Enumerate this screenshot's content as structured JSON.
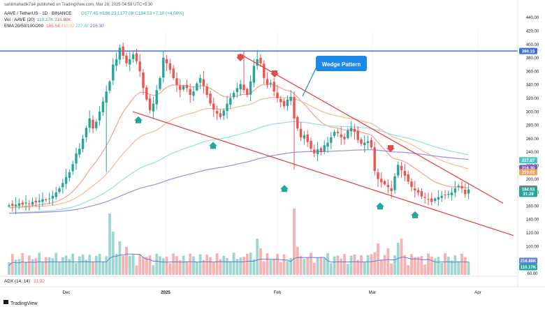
{
  "header": {
    "publisher": "sahilmahadik7a4 published on TradingView.com, Mar 28, 2025 04:58 UTC+5:30",
    "symbol": "AAVE / TetherUS · 1D · BINANCE",
    "ohlc": "O177.45 H186.23 L177.08 C184.53 +7.10 (+4.00%)",
    "vol_label": "Vol · AAVE (20)",
    "vol_values": [
      "110.17K",
      "216.88K"
    ],
    "ema_label": "EMA 20/50/100/200",
    "ema_values": [
      "185.54",
      "210.02",
      "227.87",
      "216.30"
    ],
    "adx_label": "ADX (14, 14)",
    "adx_value": "21.92",
    "brand": "TradingView"
  },
  "annotation": {
    "text": "Wedge Pattern"
  },
  "colors": {
    "up": "#26a69a",
    "down": "#ef5350",
    "ema20": "#f3a08b",
    "ema50": "#f7b98b",
    "ema100": "#90e0dc",
    "ema200": "#9c8ce0",
    "resistance": "#3d6fe0",
    "wedge": "#e53935",
    "volume_ma": "#5b7fd8",
    "callout": "#1e88e5"
  },
  "chart_data": {
    "type": "candlestick",
    "x_labels": [
      "Dec",
      "2025",
      "Feb",
      "Mar",
      "Apr"
    ],
    "y_ticks": [
      "440.00",
      "420.00",
      "400.00",
      "380.00",
      "360.00",
      "340.00",
      "320.00",
      "300.00",
      "280.00",
      "260.00",
      "240.00",
      "220.00",
      "200.00",
      "180.00",
      "160.00",
      "140.00",
      "120.00",
      "100.00",
      "80.00",
      "60.00"
    ],
    "ylim": [
      60,
      450
    ],
    "price_labels": [
      {
        "text": "390.15",
        "value": 390.15,
        "color": "#3d6fe0"
      },
      {
        "text": "227.87",
        "value": 227.87,
        "color": "#4fc3c8"
      },
      {
        "text": "216.30",
        "value": 216.3,
        "color": "#7e57c2"
      },
      {
        "text": "210.02",
        "value": 210.02,
        "color": "#f5a25d"
      },
      {
        "text": "185.54",
        "value": 185.54,
        "color": "#ef5350"
      },
      {
        "text": "184.53",
        "value": 184.53,
        "color": "#26a69a"
      },
      {
        "text": "31:29",
        "value": 178.0,
        "color": "#26a69a"
      }
    ],
    "volume_labels": [
      "216.88K",
      "110.17K"
    ],
    "resistance_level": 390.15,
    "closes": [
      161.0,
      160.0,
      162.0,
      164.0,
      162.0,
      165.0,
      163.0,
      166.0,
      165.0,
      168.0,
      170.0,
      169.0,
      171.0,
      175.0,
      180.0,
      186.0,
      194.0,
      203.0,
      210.0,
      222.0,
      238.0,
      245.0,
      260.0,
      276.0,
      290.0,
      275.0,
      285.0,
      300.0,
      315.0,
      330.0,
      345.0,
      370.0,
      378.0,
      395.0,
      383.0,
      372.0,
      378.0,
      385.0,
      375.0,
      360.0,
      335.0,
      318.0,
      302.0,
      312.0,
      332.0,
      350.0,
      380.0,
      372.0,
      362.0,
      350.0,
      340.0,
      332.0,
      338.0,
      335.0,
      325.0,
      330.0,
      342.0,
      350.0,
      338.0,
      325.0,
      312.0,
      303.0,
      297.0,
      292.0,
      302.0,
      312.0,
      320.0,
      328.0,
      335.0,
      341.0,
      332.0,
      325.0,
      345.0,
      368.0,
      378.0,
      372.0,
      350.0,
      340.0,
      343.0,
      330.0,
      320.0,
      314.0,
      308.0,
      318.0,
      322.0,
      290.0,
      275.0,
      262.0,
      265.0,
      255.0,
      245.0,
      238.0,
      244.0,
      240.0,
      250.0,
      254.0,
      262.0,
      270.0,
      268.0,
      262.0,
      259.0,
      272.0,
      276.0,
      270.0,
      258.0,
      252.0,
      254.0,
      256.0,
      247.0,
      212.0,
      200.0,
      195.0,
      192.0,
      188.0,
      182.0,
      204.0,
      221.0,
      213.0,
      205.0,
      196.0,
      188.0,
      183.0,
      180.0,
      174.0,
      172.0,
      170.0,
      166.0,
      171.0,
      173.0,
      175.0,
      176.0,
      178.0,
      180.0,
      186.0,
      190.0,
      186.0,
      177.5,
      184.53
    ]
  }
}
